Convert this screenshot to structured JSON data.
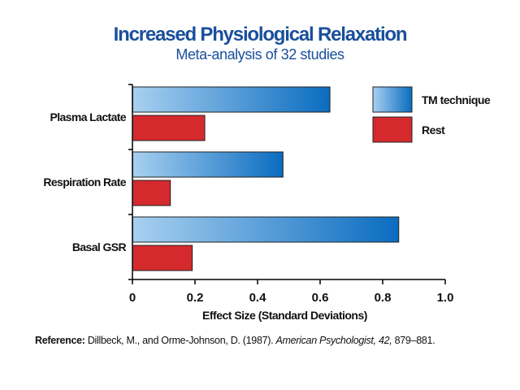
{
  "colors": {
    "title": "#1a4f9c",
    "tm_light": "#a8d0f0",
    "tm_dark": "#0a6cc0",
    "rest": "#d42a2e"
  },
  "chart_data": {
    "type": "bar",
    "orientation": "horizontal",
    "title": "Increased Physiological Relaxation",
    "subtitle": "Meta-analysis of 32 studies",
    "categories": [
      "Plasma Lactate",
      "Respiration Rate",
      "Basal GSR"
    ],
    "series": [
      {
        "name": "TM technique",
        "values": [
          0.63,
          0.48,
          0.85
        ]
      },
      {
        "name": "Rest",
        "values": [
          0.23,
          0.12,
          0.19
        ]
      }
    ],
    "xlabel": "Effect Size (Standard Deviations)",
    "xlim": [
      0,
      1.0
    ],
    "xticks": [
      "0",
      "0.2",
      "0.4",
      "0.6",
      "0.8",
      "1.0"
    ],
    "grid": false,
    "legend": "top-right"
  },
  "reference": {
    "label": "Reference:",
    "authors": "Dillbeck, M., and Orme-Johnson, D. (1987).",
    "journal": "American Psychologist, 42,",
    "pages": "879–881."
  }
}
